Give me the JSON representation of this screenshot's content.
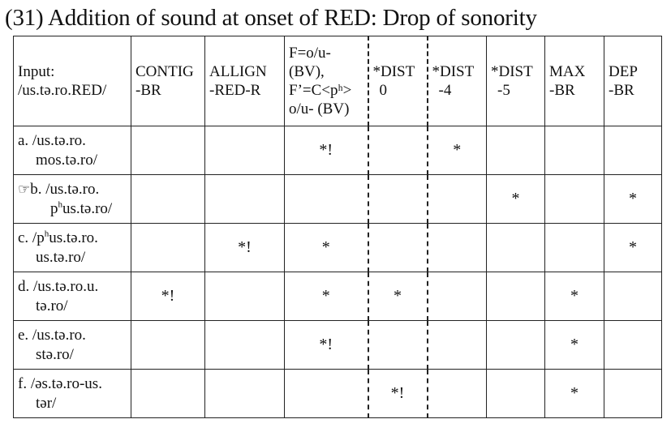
{
  "title": "(31) Addition of sound at onset of RED: Drop of sonority",
  "header": {
    "input_label": "Input:",
    "input_form": "/us.tə.ro.RED/",
    "constraints": [
      {
        "line1": "CONTIG",
        "line2": "-BR",
        "line3": "",
        "line4": ""
      },
      {
        "line1": "ALLIGN",
        "line2": "-RED-R",
        "line3": "",
        "line4": ""
      },
      {
        "line1": "F=o/u-",
        "line2": "(BV),",
        "line3": "F’=C<pʰ>",
        "line4": "o/u- (BV)"
      },
      {
        "line1": "*DIST",
        "line2": "0",
        "line3": "",
        "line4": ""
      },
      {
        "line1": "*DIST",
        "line2": "-4",
        "line3": "",
        "line4": ""
      },
      {
        "line1": "*DIST",
        "line2": "-5",
        "line3": "",
        "line4": ""
      },
      {
        "line1": "MAX",
        "line2": "-BR",
        "line3": "",
        "line4": ""
      },
      {
        "line1": "DEP",
        "line2": "-BR",
        "line3": "",
        "line4": ""
      }
    ]
  },
  "pointing_hand": "☞",
  "candidates": [
    {
      "line1": "a. /us.tə.ro.",
      "line2": "mos.tə.ro/",
      "marks": [
        "",
        "",
        "*!",
        "",
        "*",
        "",
        "",
        ""
      ]
    },
    {
      "line1": "b. /us.tə.ro.",
      "line2_pre": "p",
      "line2_sup": "h",
      "line2_post": "us.tə.ro/",
      "marks": [
        "",
        "",
        "",
        "",
        "",
        "*",
        "",
        "*"
      ]
    },
    {
      "line1_pre": "c. /p",
      "line1_sup": "h",
      "line1_post": "us.tə.ro.",
      "line2": "us.tə.ro/",
      "marks": [
        "",
        "*!",
        "*",
        "",
        "",
        "",
        "",
        "*"
      ]
    },
    {
      "line1": "d. /us.tə.ro.u.",
      "line2": "tə.ro/",
      "marks": [
        "*!",
        "",
        "*",
        "*",
        "",
        "",
        "*",
        ""
      ]
    },
    {
      "line1": "e. /us.tə.ro.",
      "line2": "stə.ro/",
      "marks": [
        "",
        "",
        "*!",
        "",
        "",
        "",
        "*",
        ""
      ]
    },
    {
      "line1": "f. /əs.tə.ro-us.",
      "line2": "tər/",
      "marks": [
        "",
        "",
        "",
        "*!",
        "",
        "",
        "*",
        ""
      ]
    }
  ]
}
